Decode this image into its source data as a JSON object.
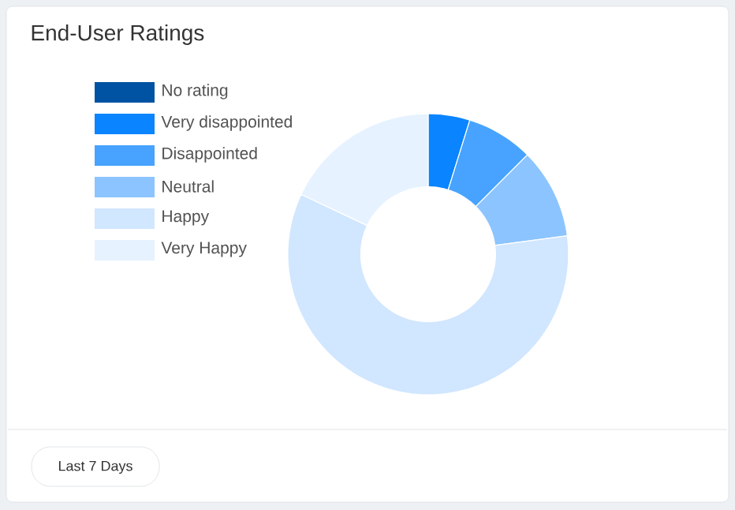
{
  "chart_data": {
    "type": "donut",
    "title": "End-User Ratings",
    "categories": [
      "No rating",
      "Very disappointed",
      "Disappointed",
      "Neutral",
      "Happy",
      "Very Happy"
    ],
    "values": [
      0,
      4.8,
      7.7,
      10.4,
      59.1,
      18.0
    ],
    "colors": [
      "#0052a3",
      "#0a84ff",
      "#47a3ff",
      "#8cc4ff",
      "#d1e6ff",
      "#e6f2ff"
    ],
    "legend": "left",
    "annotations": [
      "Last 7 Days"
    ]
  }
}
